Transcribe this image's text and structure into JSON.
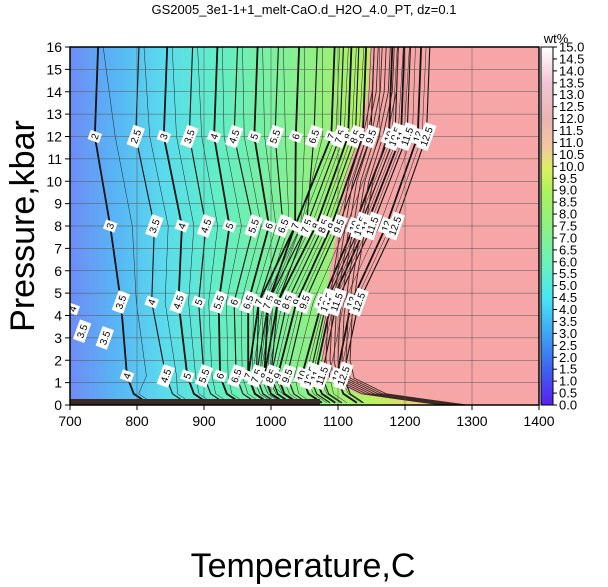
{
  "chart_data": {
    "type": "heatmap",
    "title": "GS2005_3e1-1+1_melt-CaO.d_H2O_4.0_PT, dz=0.1",
    "xlabel": "Temperature,C",
    "ylabel": "Pressure,kbar",
    "xlim": [
      700,
      1400
    ],
    "ylim": [
      0,
      16
    ],
    "x_ticks": [
      "700",
      "800",
      "900",
      "1000",
      "1100",
      "1200",
      "1300",
      "1400"
    ],
    "y_ticks": [
      "0",
      "1",
      "2",
      "3",
      "4",
      "5",
      "6",
      "7",
      "8",
      "9",
      "10",
      "11",
      "12",
      "13",
      "14",
      "15",
      "16"
    ],
    "grid": true,
    "colorbar": {
      "label": "wt%",
      "range": [
        0,
        15
      ],
      "ticks": [
        "0.0",
        "0.5",
        "1.0",
        "1.5",
        "2.0",
        "2.5",
        "3.0",
        "3.5",
        "4.0",
        "4.5",
        "5.0",
        "5.5",
        "6.0",
        "6.5",
        "7.0",
        "7.5",
        "8.0",
        "8.5",
        "9.0",
        "9.5",
        "10.0",
        "10.5",
        "11.0",
        "11.5",
        "12.0",
        "12.5",
        "13.0",
        "13.5",
        "14.0",
        "14.5",
        "15.0"
      ]
    },
    "contour_rows": [
      {
        "p": 12,
        "levels": [
          {
            "text": "2",
            "t": 737
          },
          {
            "text": "2.5",
            "t": 798
          },
          {
            "text": "3",
            "t": 840
          },
          {
            "text": "3.5",
            "t": 878
          },
          {
            "text": "4",
            "t": 915
          },
          {
            "text": "4.5",
            "t": 945
          },
          {
            "text": "5",
            "t": 975
          },
          {
            "text": "5.5",
            "t": 1006
          },
          {
            "text": "6",
            "t": 1037
          },
          {
            "text": "6.5",
            "t": 1064
          },
          {
            "text": "7",
            "t": 1090
          },
          {
            "text": "7.5",
            "t": 1103
          },
          {
            "text": "8",
            "t": 1115
          },
          {
            "text": "8.5",
            "t": 1126
          },
          {
            "text": "9",
            "t": 1137
          },
          {
            "text": "9.5",
            "t": 1149
          },
          {
            "text": "10",
            "t": 1176
          },
          {
            "text": "10.5",
            "t": 1185
          },
          {
            "text": "11",
            "t": 1194
          },
          {
            "text": "11.5",
            "t": 1203
          },
          {
            "text": "12",
            "t": 1219
          },
          {
            "text": "12.5",
            "t": 1232
          }
        ]
      },
      {
        "p": 8,
        "levels": [
          {
            "text": "3",
            "t": 760
          },
          {
            "text": "3.5",
            "t": 826
          },
          {
            "text": "4",
            "t": 867
          },
          {
            "text": "4.5",
            "t": 903
          },
          {
            "text": "5",
            "t": 938
          },
          {
            "text": "5.5",
            "t": 974
          },
          {
            "text": "6",
            "t": 997
          },
          {
            "text": "6.5",
            "t": 1018
          },
          {
            "text": "7",
            "t": 1036
          },
          {
            "text": "7.5",
            "t": 1053
          },
          {
            "text": "8",
            "t": 1067
          },
          {
            "text": "8.5",
            "t": 1078
          },
          {
            "text": "9",
            "t": 1090
          },
          {
            "text": "9.5",
            "t": 1101
          },
          {
            "text": "10",
            "t": 1124
          },
          {
            "text": "10.5",
            "t": 1133
          },
          {
            "text": "11",
            "t": 1142
          },
          {
            "text": "11.5",
            "t": 1151
          },
          {
            "text": "12",
            "t": 1172
          },
          {
            "text": "12.5",
            "t": 1185
          }
        ]
      },
      {
        "p": 4.6,
        "levels": [
          {
            "text": "3.5",
            "t": 776
          },
          {
            "text": "4",
            "t": 822
          },
          {
            "text": "4.5",
            "t": 862
          },
          {
            "text": "5",
            "t": 892
          },
          {
            "text": "5.5",
            "t": 922
          },
          {
            "text": "6",
            "t": 945
          },
          {
            "text": "6.5",
            "t": 966
          },
          {
            "text": "7",
            "t": 982
          },
          {
            "text": "7.5",
            "t": 996
          },
          {
            "text": "8",
            "t": 1010
          },
          {
            "text": "8.5",
            "t": 1024
          },
          {
            "text": "9",
            "t": 1038
          },
          {
            "text": "9.5",
            "t": 1050
          },
          {
            "text": "10",
            "t": 1076
          },
          {
            "text": "10.5",
            "t": 1083
          },
          {
            "text": "11",
            "t": 1090
          },
          {
            "text": "11.5",
            "t": 1098
          },
          {
            "text": "12",
            "t": 1120
          },
          {
            "text": "12.5",
            "t": 1131
          }
        ]
      },
      {
        "p": 1.3,
        "levels": [
          {
            "text": "4",
            "t": 785
          },
          {
            "text": "4.5",
            "t": 843
          },
          {
            "text": "5",
            "t": 875
          },
          {
            "text": "5.5",
            "t": 900
          },
          {
            "text": "6",
            "t": 924
          },
          {
            "text": "6.5",
            "t": 948
          },
          {
            "text": "7",
            "t": 966
          },
          {
            "text": "7.5",
            "t": 978
          },
          {
            "text": "8",
            "t": 990
          },
          {
            "text": "8.5",
            "t": 1000
          },
          {
            "text": "9",
            "t": 1010
          },
          {
            "text": "9.5",
            "t": 1024
          },
          {
            "text": "10",
            "t": 1046
          },
          {
            "text": "10.5",
            "t": 1058
          },
          {
            "text": "11",
            "t": 1066
          },
          {
            "text": "11.5",
            "t": 1076
          },
          {
            "text": "12",
            "t": 1098
          },
          {
            "text": "12.5",
            "t": 1108
          }
        ]
      }
    ],
    "extra_labels": [
      {
        "text": "4",
        "t": 704,
        "p": 4.3
      },
      {
        "text": "3.5",
        "t": 718,
        "p": 3.3
      },
      {
        "text": "3.5",
        "t": 752,
        "p": 3.0
      }
    ]
  }
}
